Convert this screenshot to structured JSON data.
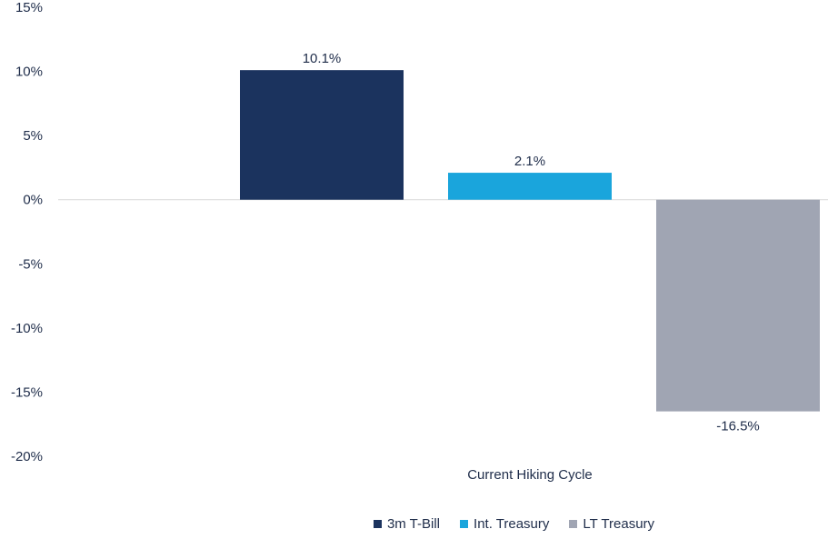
{
  "chart_data": {
    "type": "bar",
    "categories": [
      "Current Hiking Cycle"
    ],
    "series": [
      {
        "name": "3m T-Bill",
        "values": [
          10.1
        ],
        "label": "10.1%",
        "color": "#1b335e"
      },
      {
        "name": "Int. Treasury",
        "values": [
          2.1
        ],
        "label": "2.1%",
        "color": "#1aa5dc"
      },
      {
        "name": "LT Treasury",
        "values": [
          -16.5
        ],
        "label": "-16.5%",
        "color": "#a0a5b3"
      }
    ],
    "y_ticks": [
      "15%",
      "10%",
      "5%",
      "0%",
      "-5%",
      "-10%",
      "-15%",
      "-20%"
    ],
    "ylim": [
      -20,
      15
    ],
    "grid": false,
    "legend_position": "bottom"
  }
}
